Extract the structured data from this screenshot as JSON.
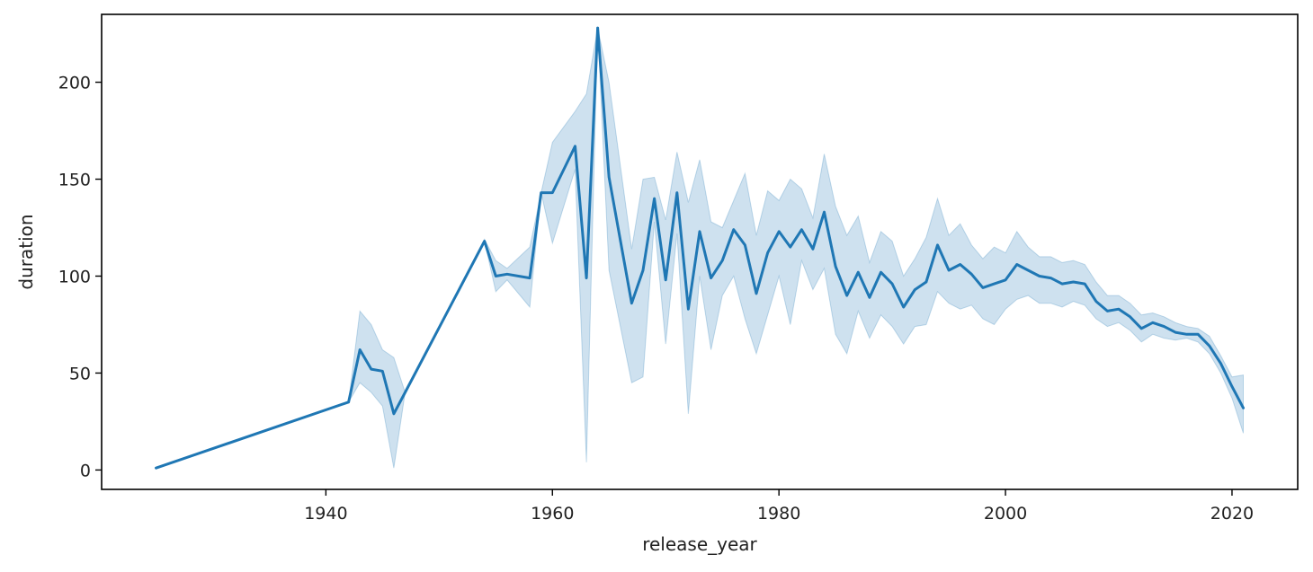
{
  "chart_data": {
    "type": "line",
    "title": "",
    "xlabel": "release_year",
    "ylabel": "duration",
    "xlim": [
      1920.2,
      2025.8
    ],
    "ylim": [
      -10,
      235
    ],
    "xticks": [
      1940,
      1960,
      1980,
      2000,
      2020
    ],
    "yticks": [
      0,
      50,
      100,
      150,
      200
    ],
    "grid": false,
    "legend": "none",
    "colors": {
      "line": "#1f77b4",
      "band": "#1f77b4"
    },
    "series": [
      {
        "x": [
          1925,
          1942,
          1943,
          1944,
          1945,
          1946,
          1947,
          1954,
          1955,
          1956,
          1958,
          1959,
          1960,
          1962,
          1963,
          1964,
          1965,
          1967,
          1968,
          1969,
          1970,
          1971,
          1972,
          1973,
          1974,
          1975,
          1976,
          1977,
          1978,
          1979,
          1980,
          1981,
          1982,
          1983,
          1984,
          1985,
          1986,
          1987,
          1988,
          1989,
          1990,
          1991,
          1992,
          1993,
          1994,
          1995,
          1996,
          1997,
          1998,
          1999,
          2000,
          2001,
          2002,
          2003,
          2004,
          2005,
          2006,
          2007,
          2008,
          2009,
          2010,
          2011,
          2012,
          2013,
          2014,
          2015,
          2016,
          2017,
          2018,
          2019,
          2020,
          2021
        ],
        "y": [
          1,
          35,
          62,
          52,
          51,
          29,
          40,
          118,
          100,
          101,
          99,
          143,
          143,
          167,
          99,
          228,
          151,
          86,
          103,
          140,
          98,
          143,
          83,
          123,
          99,
          108,
          124,
          116,
          91,
          112,
          123,
          115,
          124,
          114,
          133,
          105,
          90,
          102,
          89,
          102,
          96,
          84,
          93,
          97,
          116,
          103,
          106,
          101,
          94,
          96,
          98,
          106,
          103,
          100,
          99,
          96,
          97,
          96,
          87,
          82,
          83,
          79,
          73,
          76,
          74,
          71,
          70,
          70,
          64,
          55,
          43,
          32
        ],
        "ci_low": [
          1,
          35,
          45,
          40,
          33,
          1,
          40,
          118,
          92,
          98,
          84,
          143,
          117,
          155,
          4,
          228,
          103,
          45,
          48,
          128,
          65,
          122,
          29,
          100,
          62,
          90,
          100,
          78,
          60,
          80,
          100,
          75,
          108,
          93,
          104,
          70,
          60,
          82,
          68,
          80,
          74,
          65,
          74,
          75,
          92,
          86,
          83,
          85,
          78,
          75,
          83,
          88,
          90,
          86,
          86,
          84,
          87,
          85,
          78,
          74,
          76,
          72,
          66,
          70,
          68,
          67,
          68,
          66,
          60,
          50,
          37,
          19
        ],
        "ci_high": [
          1,
          35,
          82,
          75,
          62,
          58,
          40,
          119,
          108,
          104,
          115,
          143,
          169,
          185,
          194,
          228,
          200,
          114,
          150,
          151,
          129,
          164,
          138,
          160,
          128,
          125,
          139,
          153,
          121,
          144,
          139,
          150,
          145,
          130,
          163,
          136,
          121,
          131,
          107,
          123,
          118,
          100,
          109,
          120,
          140,
          121,
          127,
          116,
          109,
          115,
          112,
          123,
          115,
          110,
          110,
          107,
          108,
          106,
          97,
          90,
          90,
          86,
          80,
          81,
          79,
          76,
          74,
          73,
          69,
          59,
          48,
          49
        ]
      }
    ]
  }
}
